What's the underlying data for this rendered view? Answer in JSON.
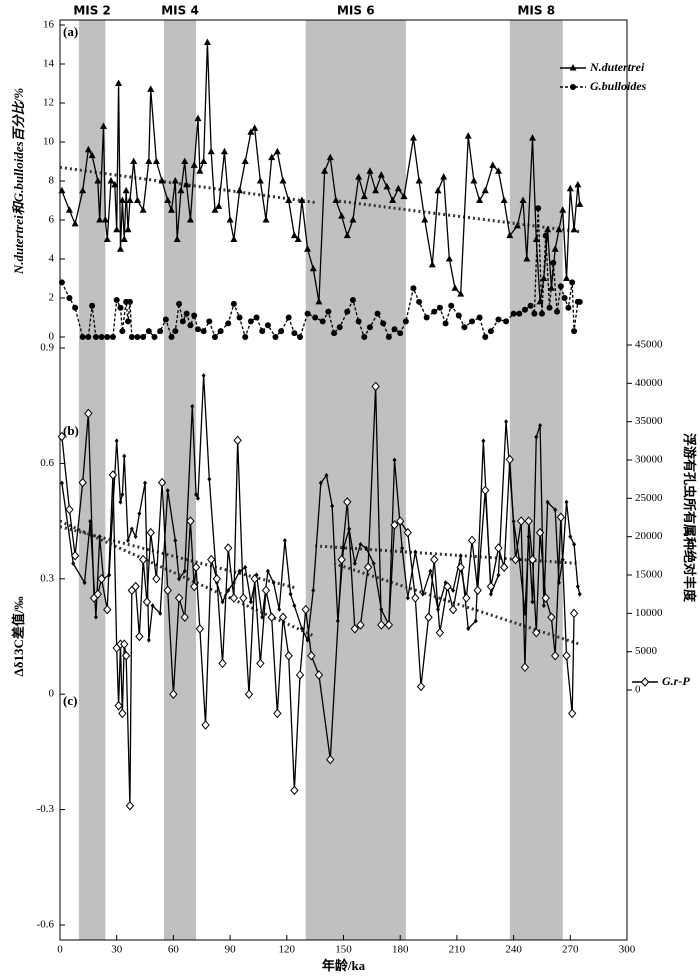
{
  "chart_data": [
    {
      "type": "line",
      "panel_label": "(a)",
      "axis_label": "N.dutertrei和G.bulloides百分比/%",
      "ylim": [
        0,
        16
      ],
      "yticks": [
        0,
        2,
        4,
        6,
        8,
        10,
        12,
        14,
        16
      ],
      "axis_side": "left",
      "legend": "upper right",
      "bands": [
        {
          "label": "MIS 2",
          "range": [
            10,
            24
          ]
        },
        {
          "label": "MIS 4",
          "range": [
            55,
            72
          ]
        },
        {
          "label": "MIS 6",
          "range": [
            130,
            183
          ]
        },
        {
          "label": "MIS 8",
          "range": [
            238,
            266
          ]
        }
      ],
      "series": [
        {
          "name": "N.dutertrei",
          "color": "#000000",
          "marker": "triangle",
          "dash": "solid",
          "x": [
            1,
            5,
            8,
            12,
            15,
            17,
            20,
            21,
            23,
            24,
            25,
            27,
            29,
            30,
            31,
            32,
            33,
            34,
            35,
            36,
            37,
            39,
            41,
            44,
            47,
            48,
            51,
            54,
            57,
            59,
            61,
            62,
            64,
            66,
            67,
            69,
            71,
            73,
            74,
            76,
            78,
            80,
            82,
            84,
            87,
            90,
            92,
            95,
            98,
            101,
            103,
            106,
            109,
            112,
            115,
            118,
            121,
            124,
            126,
            128,
            131,
            134,
            137,
            140,
            143,
            146,
            149,
            152,
            155,
            158,
            161,
            164,
            167,
            170,
            173,
            176,
            179,
            182,
            187,
            190,
            193,
            197,
            200,
            203,
            206,
            209,
            212,
            216,
            219,
            222,
            225,
            229,
            232,
            235,
            238,
            242,
            245,
            247,
            250,
            252,
            254,
            256,
            258,
            260,
            262,
            264,
            266,
            268,
            270,
            272,
            274,
            275
          ],
          "values": [
            7.5,
            6.5,
            5.8,
            7.5,
            9.6,
            9.3,
            8,
            6,
            10.8,
            6,
            5,
            8,
            7.8,
            5.5,
            13,
            4.5,
            7,
            5,
            7.5,
            5.5,
            7,
            9,
            7,
            6.5,
            9,
            12.7,
            9,
            8,
            7,
            6.5,
            8,
            5,
            7.5,
            9,
            7.8,
            6,
            8.8,
            11.2,
            8.5,
            9,
            15.1,
            9.5,
            6.5,
            6.7,
            9.5,
            6,
            5,
            7.5,
            9,
            10.5,
            10.7,
            8,
            6,
            9.2,
            9.5,
            8,
            7,
            5.2,
            5,
            7,
            4.5,
            3.5,
            1.8,
            8.5,
            9.2,
            7,
            6.2,
            5.2,
            6,
            8.2,
            7.2,
            8.5,
            7.5,
            8.3,
            7.7,
            7,
            7.6,
            7.2,
            10.2,
            8,
            6,
            3.7,
            7.5,
            8.2,
            4,
            2.5,
            2.2,
            10.3,
            8,
            7,
            7.5,
            8.8,
            8.5,
            7,
            5.2,
            5.7,
            7,
            4,
            10.2,
            5,
            1.8,
            3,
            5.5,
            2.5,
            4.5,
            5.5,
            6.5,
            3,
            7.6,
            5.5,
            7.8,
            6.8
          ]
        },
        {
          "name": "G.bulloides",
          "color": "#000000",
          "marker": "circle",
          "dash": "dashed",
          "x": [
            1,
            5,
            8,
            12,
            15,
            17,
            19,
            22,
            25,
            28,
            30,
            32,
            33,
            35,
            36,
            37,
            38,
            41,
            44,
            47,
            50,
            53,
            56,
            59,
            61,
            63,
            65,
            67,
            69,
            71,
            73,
            76,
            79,
            82,
            85,
            89,
            92,
            95,
            98,
            101,
            104,
            107,
            110,
            114,
            117,
            121,
            124,
            127,
            131,
            135,
            139,
            142,
            145,
            148,
            152,
            155,
            158,
            161,
            164,
            168,
            171,
            174,
            177,
            180,
            183,
            187,
            190,
            194,
            198,
            201,
            204,
            207,
            211,
            214,
            218,
            222,
            225,
            228,
            232,
            236,
            240,
            243,
            246,
            249,
            251,
            253,
            255,
            257,
            259,
            261,
            263,
            265,
            267,
            269,
            271,
            272,
            274,
            275
          ],
          "values": [
            2.8,
            2,
            1.5,
            0,
            0,
            1.6,
            0,
            0,
            0,
            0,
            1.9,
            1.5,
            0.3,
            1.8,
            0.8,
            1.8,
            0,
            0,
            0,
            0.3,
            0,
            0.3,
            0.9,
            0,
            0.3,
            1.7,
            0.8,
            1.2,
            0.6,
            1.1,
            0.4,
            0.3,
            0.8,
            0,
            0.3,
            0.7,
            1.7,
            1,
            0,
            0.8,
            1,
            0.3,
            0.6,
            0,
            0.3,
            1,
            0.2,
            0,
            1.2,
            1,
            0.8,
            1.3,
            0.2,
            0.5,
            1.3,
            1.9,
            0.8,
            0,
            0.5,
            1.2,
            0.7,
            0,
            0.4,
            0.2,
            0.8,
            2.5,
            1.8,
            1,
            1.3,
            1.5,
            0.7,
            1.6,
            1.1,
            0.5,
            0.8,
            1,
            0,
            0.3,
            0.9,
            0.8,
            1.2,
            1.2,
            1.4,
            1.6,
            1.2,
            6.6,
            1.2,
            5.2,
            1.5,
            3.8,
            1.3,
            2.6,
            2,
            1.5,
            2.8,
            0.3,
            1.8,
            1.8
          ]
        }
      ],
      "trends": [
        {
          "x": [
            0,
            135
          ],
          "y": [
            8.7,
            6.9
          ]
        },
        {
          "x": [
            145,
            275
          ],
          "y": [
            7.0,
            5.4
          ]
        }
      ]
    },
    {
      "type": "line",
      "panel_label": "(b)",
      "axis_label": "浮游有孔虫所有属种绝对丰度",
      "ylim": [
        0,
        45000
      ],
      "yticks": [
        0,
        5000,
        10000,
        15000,
        20000,
        25000,
        30000,
        35000,
        40000,
        45000
      ],
      "axis_side": "right",
      "series": [
        {
          "color": "#000000",
          "marker": "dot",
          "dash": "solid",
          "x": [
            1,
            7,
            13,
            16,
            19,
            21,
            23,
            26,
            30,
            32,
            33,
            34,
            36,
            38,
            40,
            42,
            45,
            47,
            49,
            53,
            57,
            61,
            63,
            66,
            70,
            72,
            73,
            76,
            79,
            83,
            86,
            89,
            92,
            95,
            98,
            101,
            104,
            107,
            110,
            113,
            116,
            119,
            122,
            124,
            128,
            131,
            134,
            138,
            141,
            144,
            147,
            150,
            153,
            156,
            159,
            162,
            166,
            170,
            174,
            177,
            181,
            184,
            188,
            192,
            196,
            200,
            204,
            208,
            212,
            216,
            220,
            224,
            228,
            232,
            236,
            240,
            243,
            246,
            248,
            250,
            252,
            254,
            256,
            258,
            262,
            264,
            266,
            268,
            270,
            272,
            274,
            275
          ],
          "values": [
            27000,
            16500,
            14000,
            22000,
            9500,
            20000,
            14500,
            15000,
            32500,
            24500,
            25500,
            30500,
            19500,
            21000,
            20000,
            23000,
            27000,
            6500,
            11000,
            10000,
            26000,
            19500,
            14500,
            15500,
            37000,
            25500,
            25000,
            41000,
            27500,
            14000,
            11500,
            13000,
            14000,
            15500,
            16000,
            11500,
            15000,
            9500,
            15500,
            14000,
            10500,
            19500,
            12500,
            11000,
            8000,
            6500,
            13000,
            27000,
            28000,
            24000,
            9000,
            18500,
            21000,
            16500,
            19000,
            18500,
            16500,
            10500,
            8500,
            30000,
            18500,
            12000,
            18000,
            12500,
            15500,
            10500,
            14000,
            13000,
            17500,
            8000,
            9000,
            32500,
            12500,
            15000,
            35000,
            22000,
            17000,
            10000,
            20000,
            11500,
            33000,
            34500,
            11000,
            24500,
            23500,
            14000,
            17000,
            24500,
            20000,
            19000,
            13500,
            12500
          ]
        }
      ],
      "trends": [
        {
          "x": [
            0,
            125
          ],
          "y": [
            21300,
            13300
          ]
        },
        {
          "x": [
            135,
            275
          ],
          "y": [
            18800,
            16500
          ]
        }
      ]
    },
    {
      "type": "line",
      "panel_label": "(c)",
      "axis_label": "Δδ13C差值/‰",
      "x_label": "年龄/ka",
      "ylim": [
        -0.6,
        0.9
      ],
      "yticks": [
        -0.6,
        -0.3,
        0,
        0.3,
        0.6,
        0.9
      ],
      "axis_side": "left",
      "legend": "right",
      "xlim": [
        0,
        300
      ],
      "xticks": [
        0,
        30,
        60,
        90,
        120,
        150,
        180,
        210,
        240,
        270,
        300
      ],
      "series": [
        {
          "name": "G.r-P",
          "color": "#000000",
          "marker": "diamond",
          "dash": "solid",
          "x": [
            1,
            5,
            8,
            12,
            15,
            18,
            20,
            22,
            25,
            28,
            30,
            31,
            32,
            33,
            34,
            35,
            37,
            38,
            40,
            42,
            44,
            46,
            48,
            51,
            54,
            57,
            60,
            63,
            66,
            69,
            71,
            72,
            74,
            77,
            80,
            83,
            86,
            89,
            92,
            94,
            97,
            100,
            103,
            106,
            109,
            112,
            115,
            118,
            121,
            124,
            127,
            130,
            133,
            137,
            143,
            149,
            152,
            156,
            159,
            163,
            167,
            170,
            174,
            177,
            180,
            184,
            188,
            191,
            195,
            198,
            201,
            205,
            208,
            212,
            215,
            218,
            221,
            225,
            228,
            232,
            235,
            238,
            241,
            244,
            246,
            248,
            250,
            252,
            254,
            257,
            260,
            262,
            265,
            268,
            271,
            272
          ],
          "values": [
            0.67,
            0.48,
            0.36,
            0.55,
            0.73,
            0.25,
            0.26,
            0.3,
            0.22,
            0.57,
            0.12,
            -0.03,
            0.13,
            -0.05,
            0.13,
            0.1,
            -0.29,
            0.27,
            0.28,
            0.15,
            0.35,
            0.24,
            0.42,
            0.3,
            0.55,
            0.27,
            0,
            0.25,
            0.2,
            0.45,
            0.28,
            0.33,
            0.17,
            -0.08,
            0.35,
            0.3,
            0.08,
            0.38,
            0.25,
            0.66,
            0.25,
            0,
            0.3,
            0.08,
            0.27,
            0.2,
            -0.05,
            0.2,
            0.1,
            -0.25,
            0.05,
            0.22,
            0.1,
            0.05,
            -0.17,
            0.35,
            0.5,
            0.17,
            0.18,
            0.33,
            0.8,
            0.18,
            0.18,
            0.44,
            0.45,
            0.42,
            0.25,
            0.02,
            0.2,
            0.35,
            0.16,
            0.28,
            0.22,
            0.33,
            0.25,
            0.4,
            0.27,
            0.53,
            0.28,
            0.38,
            0.33,
            0.61,
            0.35,
            0.45,
            0.07,
            0.45,
            0.35,
            0.16,
            0.42,
            0.25,
            0.2,
            0.1,
            0.46,
            0.1,
            -0.05,
            0.21
          ]
        }
      ],
      "trends": [
        {
          "x": [
            0,
            135
          ],
          "y": [
            0.45,
            0.15
          ]
        },
        {
          "x": [
            145,
            275
          ],
          "y": [
            0.34,
            0.13
          ]
        }
      ]
    }
  ]
}
